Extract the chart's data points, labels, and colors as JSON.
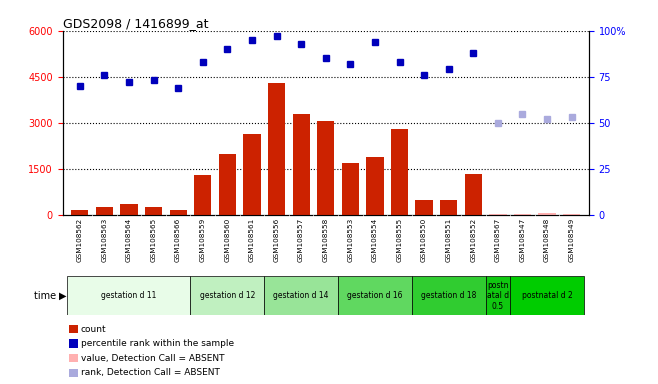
{
  "title": "GDS2098 / 1416899_at",
  "sample_ids": [
    "GSM108562",
    "GSM108563",
    "GSM108564",
    "GSM108565",
    "GSM108566",
    "GSM108559",
    "GSM108560",
    "GSM108561",
    "GSM108556",
    "GSM108557",
    "GSM108558",
    "GSM108553",
    "GSM108554",
    "GSM108555",
    "GSM108550",
    "GSM108551",
    "GSM108552",
    "GSM108567",
    "GSM108547",
    "GSM108548",
    "GSM108549"
  ],
  "counts": [
    150,
    250,
    350,
    250,
    150,
    1300,
    2000,
    2650,
    4300,
    3300,
    3050,
    1700,
    1900,
    2800,
    500,
    500,
    1350,
    50,
    50,
    80,
    40
  ],
  "counts_absent": [
    false,
    false,
    false,
    false,
    false,
    false,
    false,
    false,
    false,
    false,
    false,
    false,
    false,
    false,
    false,
    false,
    false,
    true,
    true,
    true,
    true
  ],
  "percentile_ranks_pct": [
    70,
    76,
    72,
    73,
    69,
    83,
    90,
    95,
    97,
    93,
    85,
    82,
    94,
    83,
    76,
    79,
    88,
    null,
    null,
    null,
    null
  ],
  "rank_absent_pct": [
    null,
    null,
    null,
    null,
    null,
    null,
    null,
    null,
    null,
    null,
    null,
    null,
    null,
    null,
    null,
    null,
    null,
    50,
    55,
    52,
    53
  ],
  "groups": [
    {
      "label": "gestation d 11",
      "start": 0,
      "end": 5,
      "color": "#e8fce8"
    },
    {
      "label": "gestation d 12",
      "start": 5,
      "end": 8,
      "color": "#c0f0c0"
    },
    {
      "label": "gestation d 14",
      "start": 8,
      "end": 11,
      "color": "#98e498"
    },
    {
      "label": "gestation d 16",
      "start": 11,
      "end": 14,
      "color": "#60d860"
    },
    {
      "label": "gestation d 18",
      "start": 14,
      "end": 17,
      "color": "#30cc30"
    },
    {
      "label": "postn\natal d\n0.5",
      "start": 17,
      "end": 18,
      "color": "#10c810"
    },
    {
      "label": "postnatal d 2",
      "start": 18,
      "end": 21,
      "color": "#00cc00"
    }
  ],
  "ylim_left": [
    0,
    6000
  ],
  "ylim_right": [
    0,
    100
  ],
  "yticks_left": [
    0,
    1500,
    3000,
    4500,
    6000
  ],
  "yticks_right": [
    0,
    25,
    50,
    75,
    100
  ],
  "bar_color": "#cc2200",
  "absent_bar_color": "#ffb0b0",
  "dot_color": "#0000bb",
  "absent_dot_color": "#aaaadd",
  "bg_color_plot": "#ffffff",
  "bg_color_xticks": "#d0d0d0",
  "legend_items": [
    {
      "label": "count",
      "color": "#cc2200"
    },
    {
      "label": "percentile rank within the sample",
      "color": "#0000bb"
    },
    {
      "label": "value, Detection Call = ABSENT",
      "color": "#ffb0b0"
    },
    {
      "label": "rank, Detection Call = ABSENT",
      "color": "#aaaadd"
    }
  ]
}
